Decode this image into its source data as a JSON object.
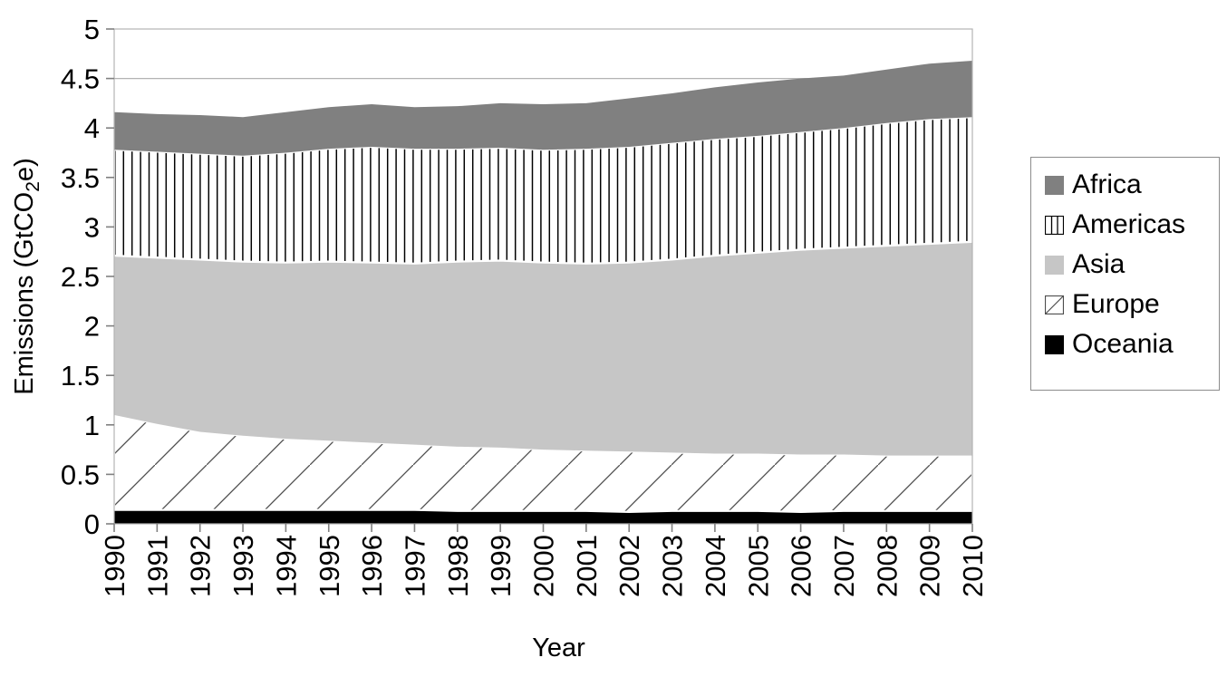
{
  "page": {
    "background_color": "#ffffff"
  },
  "chart_data": {
    "type": "area",
    "stacked": true,
    "xlabel": "Year",
    "ylabel": {
      "pre": "Emissions (GtCO",
      "sub": "2",
      "post": "e)"
    },
    "ylim": [
      0,
      5
    ],
    "ytick_step": 0.5,
    "ytick_labels": [
      "0",
      "0.5",
      "1",
      "1.5",
      "2",
      "2.5",
      "3",
      "3.5",
      "4",
      "4.5",
      "5"
    ],
    "grid": "horizontal",
    "grid_color": "#b3b3b3",
    "axis_color": "#b3b3b3",
    "tick_color": "#808080",
    "text_color": "#000000",
    "x": [
      1990,
      1991,
      1992,
      1993,
      1994,
      1995,
      1996,
      1997,
      1998,
      1999,
      2000,
      2001,
      2002,
      2003,
      2004,
      2005,
      2006,
      2007,
      2008,
      2009,
      2010
    ],
    "xtick_labels": [
      "1990",
      "1991",
      "1992",
      "1993",
      "1994",
      "1995",
      "1996",
      "1997",
      "1998",
      "1999",
      "2000",
      "2001",
      "2002",
      "2003",
      "2004",
      "2005",
      "2006",
      "2007",
      "2008",
      "2009",
      "2010"
    ],
    "series": [
      {
        "name": "Oceania",
        "style": "solid",
        "color": "#000000",
        "values": [
          0.14,
          0.14,
          0.14,
          0.14,
          0.14,
          0.14,
          0.14,
          0.14,
          0.13,
          0.13,
          0.13,
          0.13,
          0.12,
          0.13,
          0.13,
          0.13,
          0.12,
          0.13,
          0.13,
          0.13,
          0.13
        ]
      },
      {
        "name": "Europe",
        "style": "diagonal-hatch",
        "color": "#ffffff",
        "line_color": "#4d4d4d",
        "values": [
          0.96,
          0.87,
          0.79,
          0.75,
          0.72,
          0.7,
          0.68,
          0.66,
          0.65,
          0.64,
          0.62,
          0.61,
          0.61,
          0.59,
          0.58,
          0.58,
          0.58,
          0.57,
          0.56,
          0.56,
          0.56
        ]
      },
      {
        "name": "Asia",
        "style": "solid",
        "color": "#c6c6c6",
        "values": [
          1.61,
          1.68,
          1.74,
          1.76,
          1.78,
          1.81,
          1.82,
          1.83,
          1.87,
          1.89,
          1.89,
          1.89,
          1.91,
          1.95,
          2.0,
          2.03,
          2.07,
          2.09,
          2.12,
          2.14,
          2.16
        ]
      },
      {
        "name": "Americas",
        "style": "vertical-hatch",
        "color": "#ffffff",
        "line_color": "#000000",
        "values": [
          1.07,
          1.07,
          1.07,
          1.07,
          1.11,
          1.14,
          1.17,
          1.16,
          1.14,
          1.14,
          1.14,
          1.16,
          1.17,
          1.18,
          1.18,
          1.18,
          1.19,
          1.21,
          1.24,
          1.26,
          1.26
        ]
      },
      {
        "name": "Africa",
        "style": "solid",
        "color": "#808080",
        "values": [
          0.38,
          0.38,
          0.39,
          0.39,
          0.41,
          0.42,
          0.43,
          0.42,
          0.43,
          0.45,
          0.46,
          0.46,
          0.49,
          0.5,
          0.52,
          0.54,
          0.54,
          0.53,
          0.54,
          0.56,
          0.57
        ]
      }
    ],
    "legend": {
      "position": "right",
      "items": [
        {
          "label": "Africa",
          "swatch": "solid",
          "color": "#808080"
        },
        {
          "label": "Americas",
          "swatch": "vertical-hatch",
          "color": "#ffffff",
          "line_color": "#000000"
        },
        {
          "label": "Asia",
          "swatch": "solid",
          "color": "#c6c6c6"
        },
        {
          "label": "Europe",
          "swatch": "diagonal-hatch",
          "color": "#ffffff",
          "line_color": "#4d4d4d"
        },
        {
          "label": "Oceania",
          "swatch": "solid",
          "color": "#000000"
        }
      ]
    }
  }
}
